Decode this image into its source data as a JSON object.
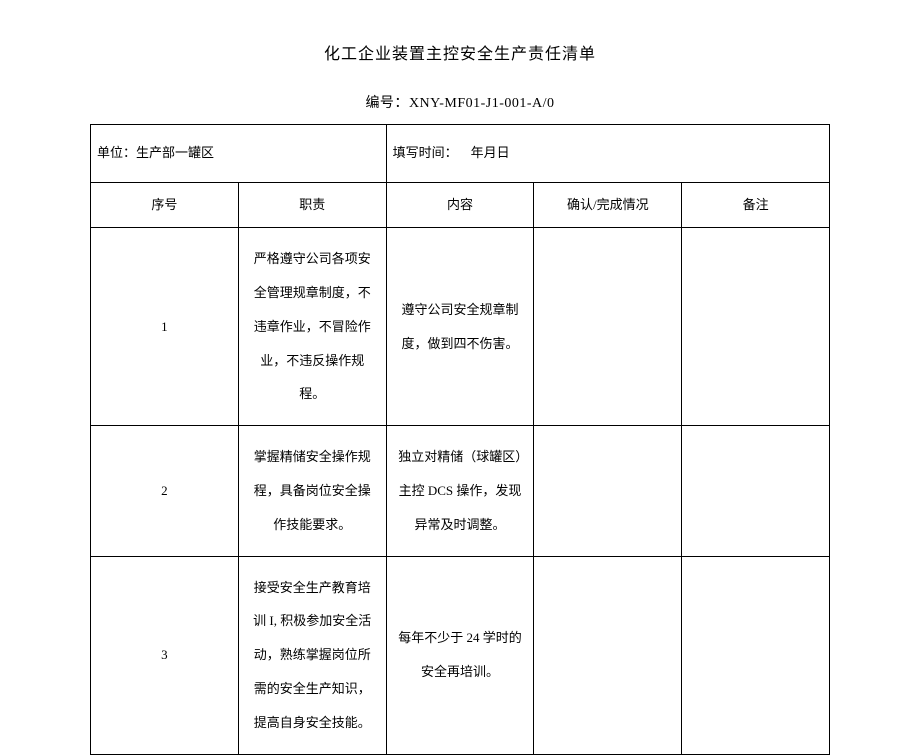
{
  "title": "化工企业装置主控安全生产责任清单",
  "doc_number_label": "编号：",
  "doc_number": "XNY-MF01-J1-001-A/0",
  "header": {
    "unit_label": "单位：",
    "unit_value": "生产部一罐区",
    "date_label": "填写时间：",
    "date_value": "年月日"
  },
  "columns": {
    "seq": "序号",
    "duty": "职责",
    "content": "内容",
    "confirm": "确认/完成情况",
    "remark": "备注"
  },
  "rows": [
    {
      "seq": "1",
      "duty": "严格遵守公司各项安全管理规章制度，不违章作业，不冒险作业，不违反操作规程。",
      "content": "遵守公司安全规章制度，做到四不伤害。",
      "confirm": "",
      "remark": ""
    },
    {
      "seq": "2",
      "duty": "掌握精储安全操作规程，具备岗位安全操作技能要求。",
      "content": "独立对精储（球罐区）主控 DCS 操作，发现异常及时调整。",
      "confirm": "",
      "remark": ""
    },
    {
      "seq": "3",
      "duty": "接受安全生产教育培训 I, 积极参加安全活动，熟练掌握岗位所需的安全生产知识，提高自身安全技能。",
      "content": "每年不少于 24 学时的安全再培训。",
      "confirm": "",
      "remark": ""
    }
  ]
}
